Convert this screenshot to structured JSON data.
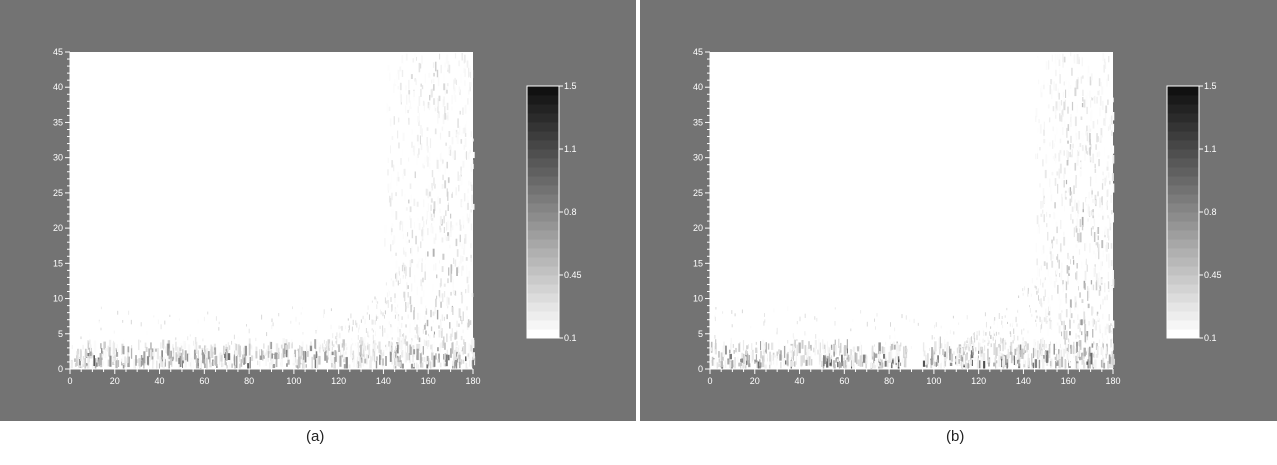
{
  "chart_data": [
    {
      "type": "heatmap",
      "panel_label": "(a)",
      "x_ticks": [
        0,
        20,
        40,
        60,
        80,
        100,
        120,
        140,
        160,
        180
      ],
      "y_ticks": [
        0,
        5,
        10,
        15,
        20,
        25,
        30,
        35,
        40,
        45
      ],
      "xlim": [
        0,
        180
      ],
      "ylim": [
        0,
        45
      ],
      "colorbar": {
        "ticks": [
          "1.5",
          "1.1",
          "0.8",
          "0.45",
          "0.1"
        ],
        "range": [
          0.1,
          1.5
        ],
        "colormap": "white-to-black"
      },
      "colors": {
        "background": "#737373",
        "plot_area": "#ffffff",
        "high": "#111111",
        "low": "#ffffff"
      },
      "intensity": {
        "low_band": {
          "y_range": [
            0,
            3
          ],
          "x_range": [
            0,
            180
          ],
          "peak": 1.3
        },
        "high_band": {
          "x_range": [
            140,
            180
          ],
          "y_range": [
            3,
            45
          ],
          "peak": 0.9
        }
      }
    },
    {
      "type": "heatmap",
      "panel_label": "(b)",
      "x_ticks": [
        0,
        20,
        40,
        60,
        80,
        100,
        120,
        140,
        160,
        180
      ],
      "y_ticks": [
        0,
        5,
        10,
        15,
        20,
        25,
        30,
        35,
        40,
        45
      ],
      "xlim": [
        0,
        180
      ],
      "ylim": [
        0,
        45
      ],
      "colorbar": {
        "ticks": [
          "1.5",
          "1.1",
          "0.8",
          "0.45",
          "0.1"
        ],
        "range": [
          0.1,
          1.5
        ],
        "colormap": "white-to-black"
      },
      "colors": {
        "background": "#737373",
        "plot_area": "#ffffff",
        "high": "#111111",
        "low": "#ffffff"
      },
      "intensity": {
        "low_band": {
          "y_range": [
            0,
            3
          ],
          "x_range": [
            0,
            180
          ],
          "gap_x_range": [
            88,
            95
          ],
          "peak": 1.4
        },
        "high_band": {
          "x_range": [
            145,
            180
          ],
          "y_range": [
            3,
            45
          ],
          "peak": 1.0
        }
      }
    }
  ]
}
